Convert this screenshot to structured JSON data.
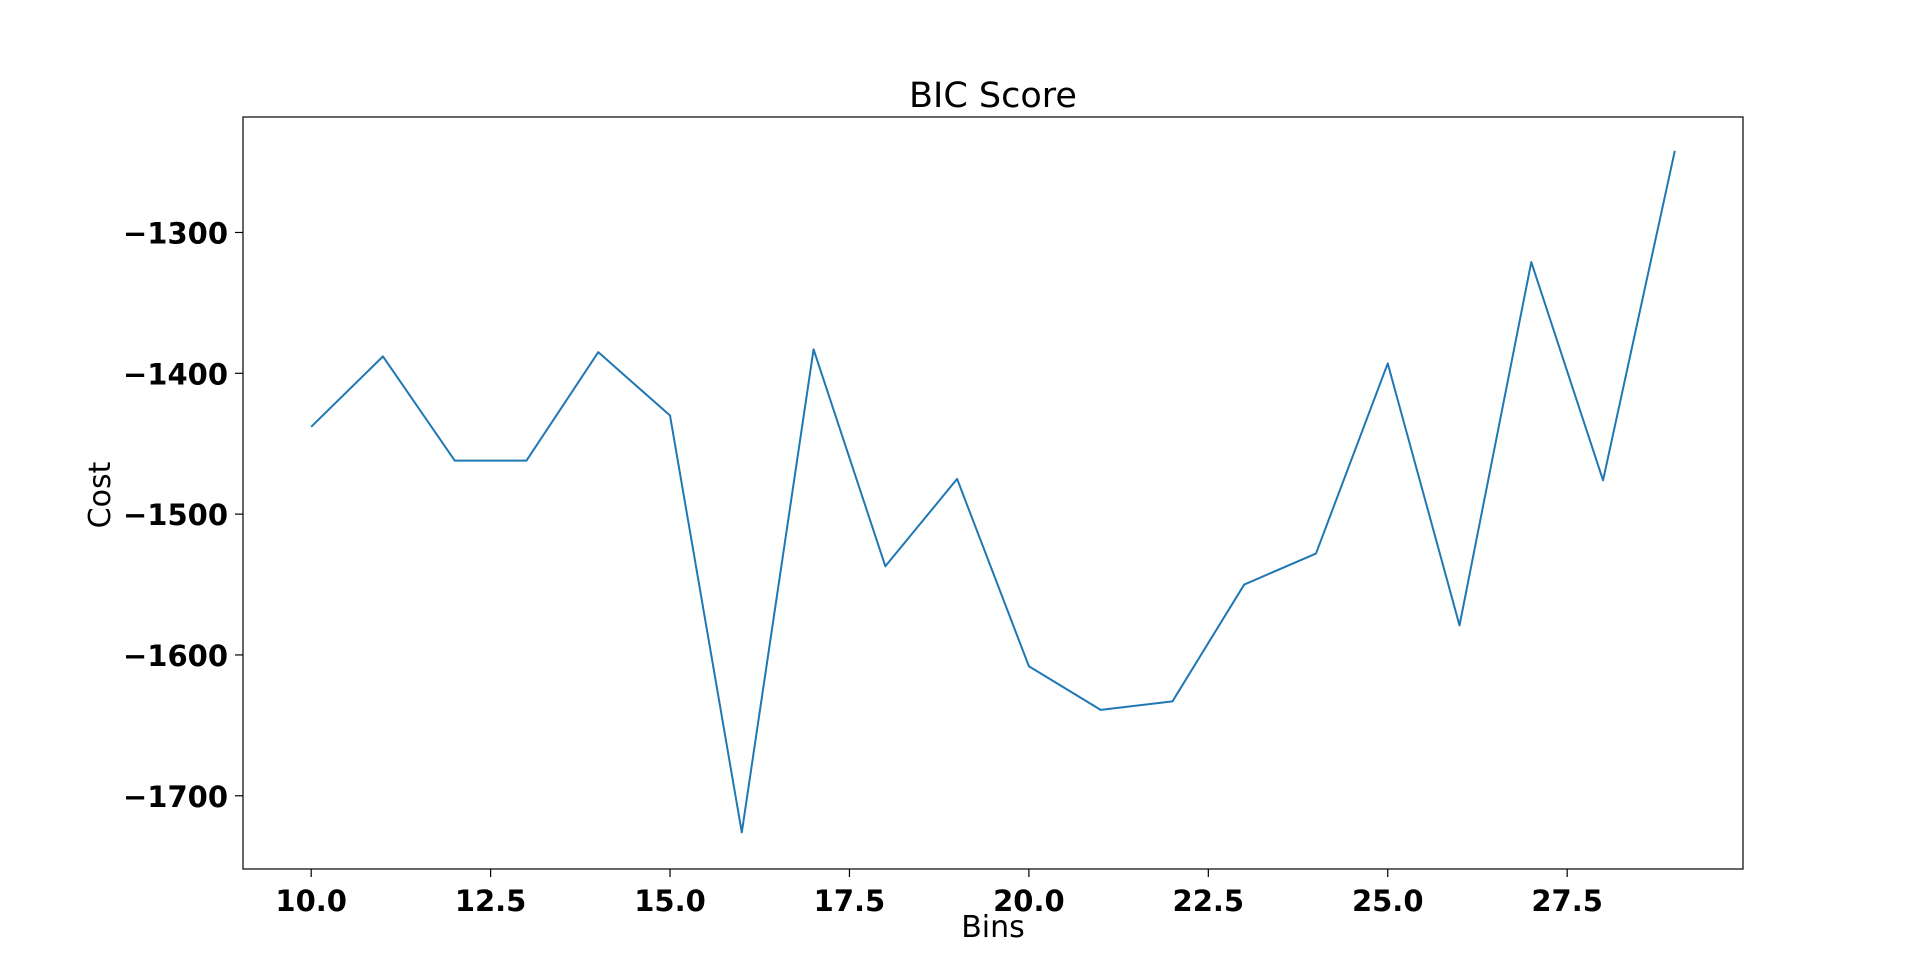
{
  "chart_data": {
    "type": "line",
    "title": "BIC Score",
    "xlabel": "Bins",
    "ylabel": "Cost",
    "xlim": [
      9.05,
      29.95
    ],
    "ylim": [
      -1752,
      -1218
    ],
    "grid": false,
    "x_ticks": [
      10.0,
      12.5,
      15.0,
      17.5,
      20.0,
      22.5,
      25.0,
      27.5
    ],
    "x_tick_labels": [
      "10.0",
      "12.5",
      "15.0",
      "17.5",
      "20.0",
      "22.5",
      "25.0",
      "27.5"
    ],
    "y_ticks": [
      -1700,
      -1600,
      -1500,
      -1400,
      -1300
    ],
    "y_tick_labels": [
      "−1700",
      "−1600",
      "−1500",
      "−1400",
      "−1300"
    ],
    "series": [
      {
        "color": "#1f77b4",
        "x": [
          10,
          11,
          12,
          13,
          14,
          15,
          16,
          17,
          18,
          19,
          20,
          21,
          22,
          23,
          24,
          25,
          26,
          27,
          28,
          29
        ],
        "y": [
          -1438,
          -1388,
          -1462,
          -1462,
          -1385,
          -1430,
          -1726,
          -1383,
          -1537,
          -1475,
          -1608,
          -1639,
          -1633,
          -1550,
          -1528,
          -1393,
          -1579,
          -1321,
          -1476,
          -1242
        ]
      }
    ]
  }
}
